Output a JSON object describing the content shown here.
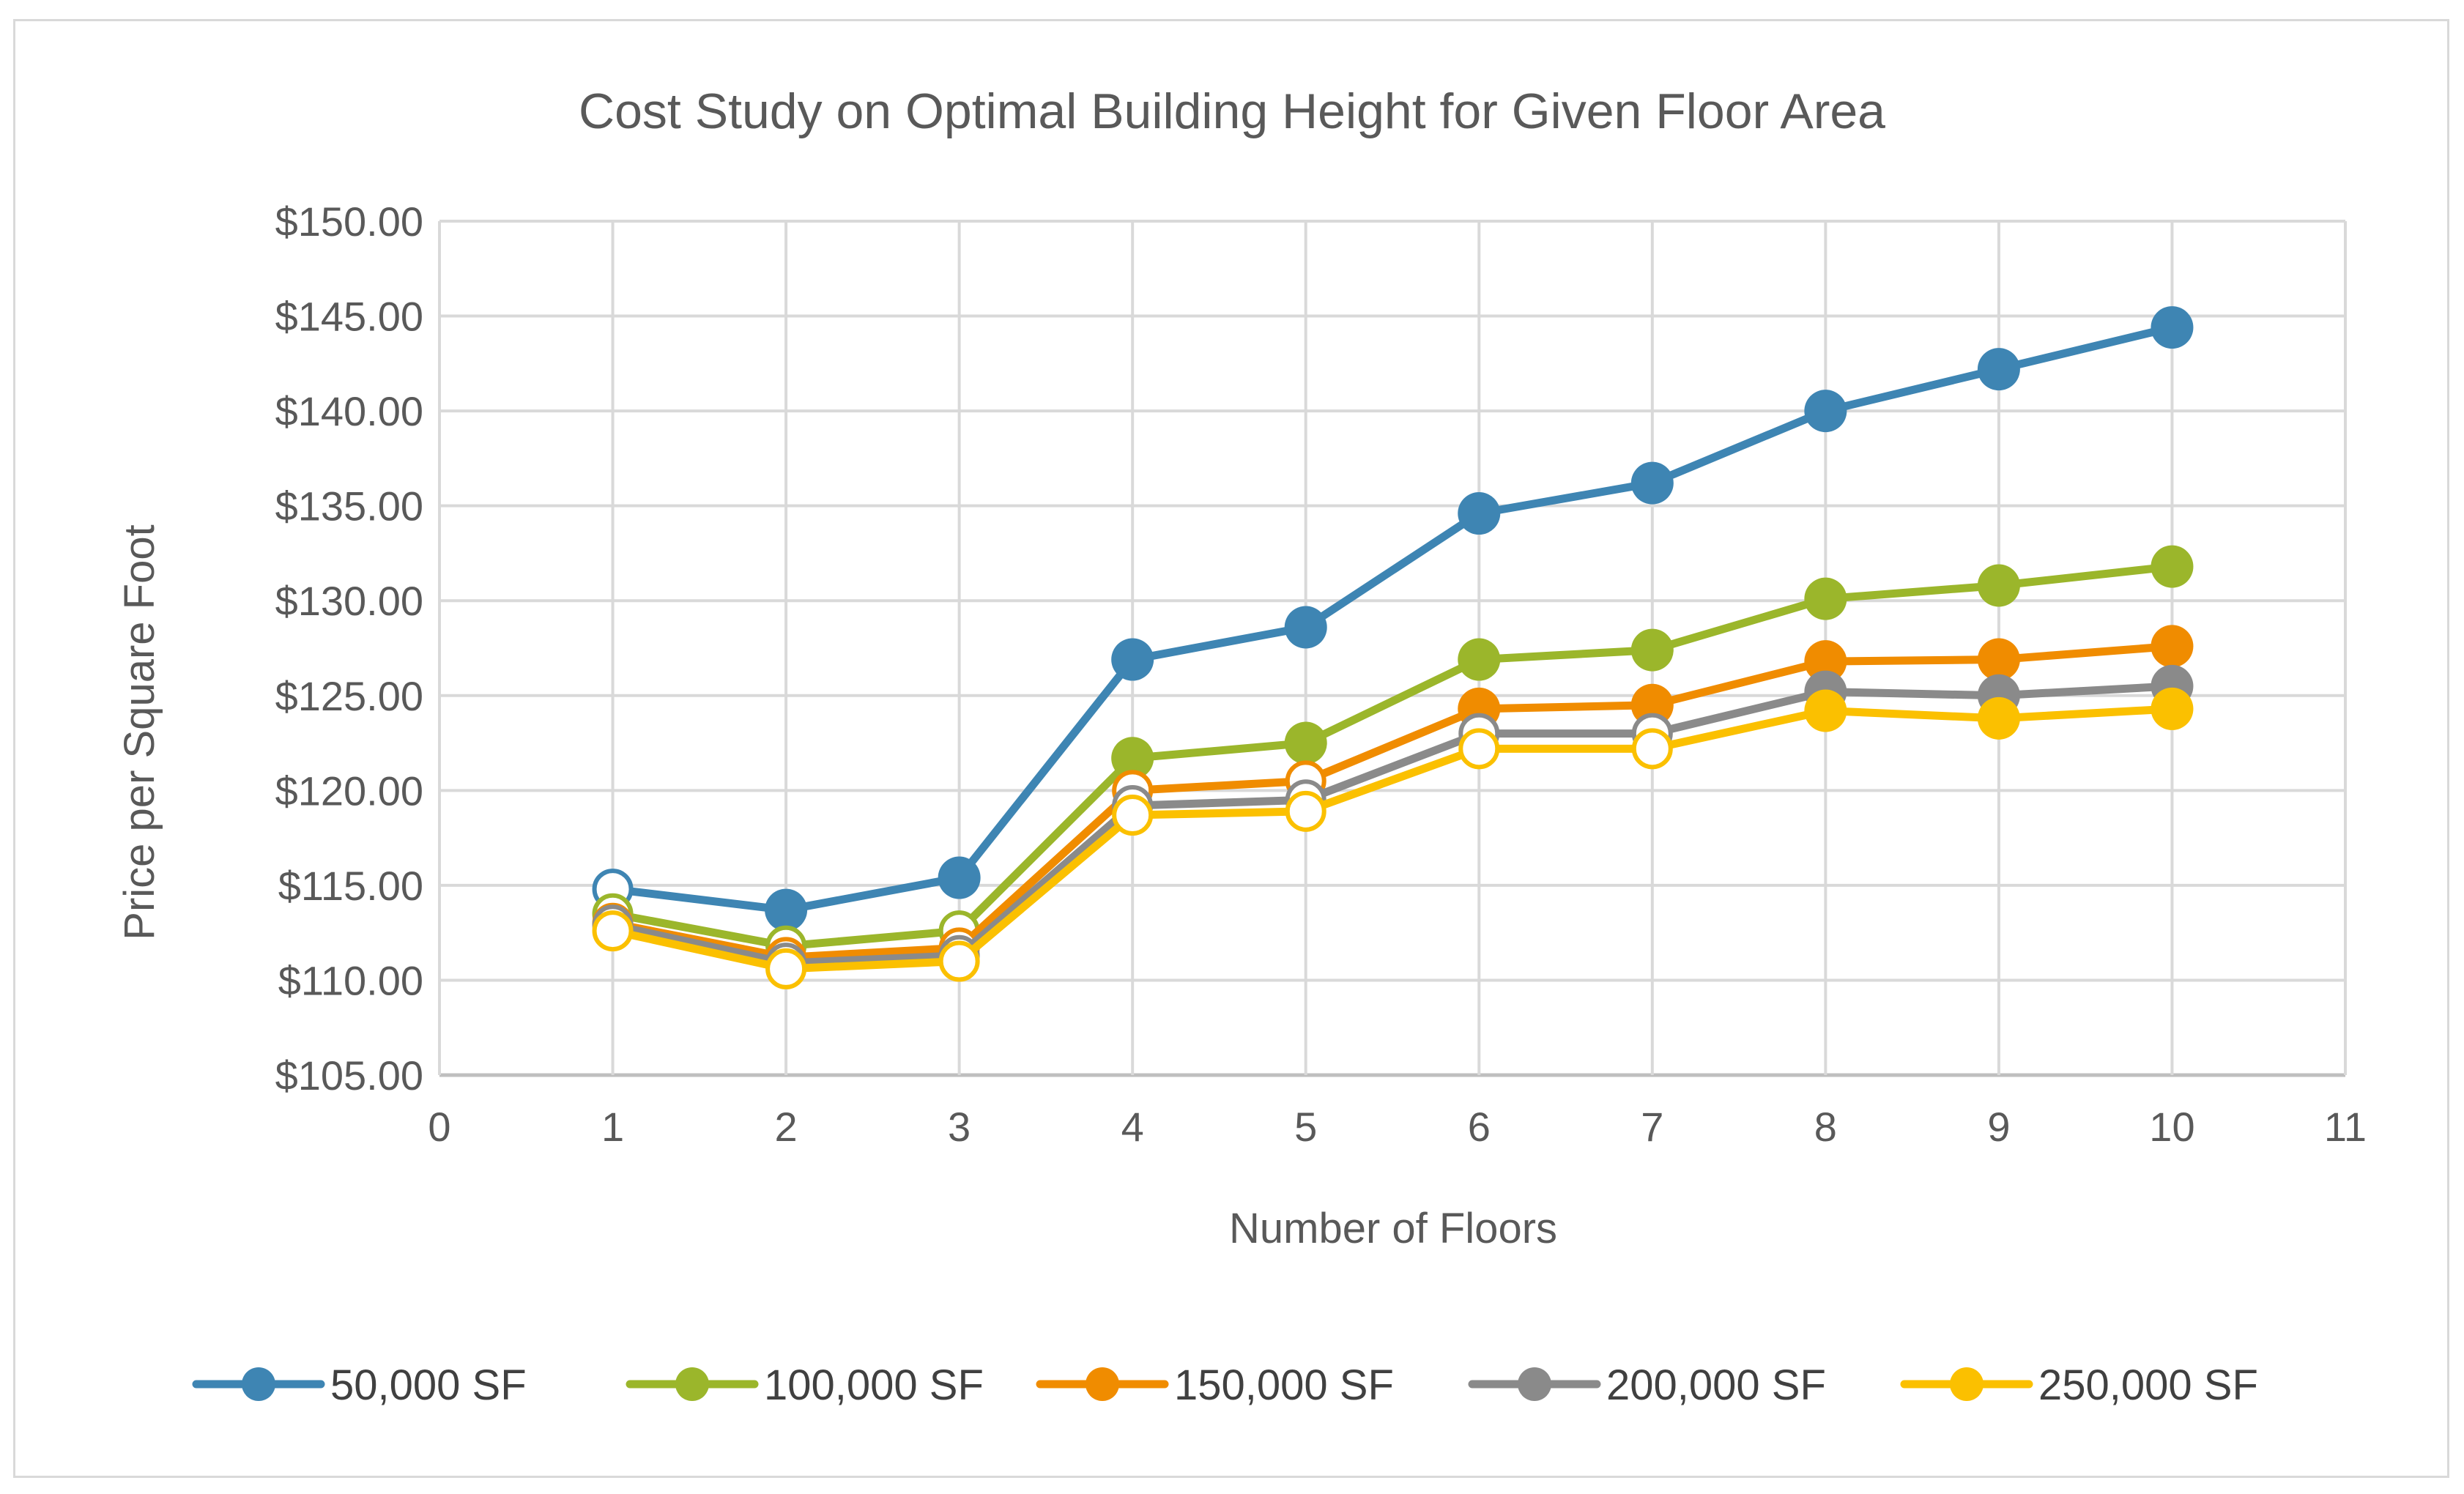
{
  "chart_data": {
    "type": "line",
    "title": "Cost Study on Optimal Building Height for Given Floor Area",
    "xlabel": "Number of Floors",
    "ylabel": "Price per Square Foot",
    "xlim": [
      0,
      11
    ],
    "ylim": [
      105,
      150
    ],
    "x_ticks": [
      0,
      1,
      2,
      3,
      4,
      5,
      6,
      7,
      8,
      9,
      10,
      11
    ],
    "y_ticks": [
      "$105.00",
      "$110.00",
      "$115.00",
      "$120.00",
      "$125.00",
      "$130.00",
      "$135.00",
      "$140.00",
      "$145.00",
      "$150.00"
    ],
    "y_tick_values": [
      105,
      110,
      115,
      120,
      125,
      130,
      135,
      140,
      145,
      150
    ],
    "grid": true,
    "legend_position": "bottom",
    "x": [
      1,
      2,
      3,
      4,
      5,
      6,
      7,
      8,
      9,
      10
    ],
    "series": [
      {
        "name": "50,000 SF",
        "color": "#3e85b3",
        "values": [
          114.8,
          113.7,
          115.4,
          126.9,
          128.6,
          134.6,
          136.2,
          140.0,
          142.2,
          144.4
        ],
        "hollow": [
          true,
          false,
          false,
          false,
          false,
          false,
          false,
          false,
          false,
          false
        ]
      },
      {
        "name": "100,000 SF",
        "color": "#9bb62b",
        "values": [
          113.5,
          111.8,
          112.6,
          121.7,
          122.5,
          126.9,
          127.4,
          130.1,
          130.8,
          131.8
        ],
        "hollow": [
          true,
          true,
          true,
          false,
          false,
          false,
          false,
          false,
          false,
          false
        ]
      },
      {
        "name": "150,000 SF",
        "color": "#f08c00",
        "values": [
          113.0,
          111.2,
          111.7,
          120.0,
          120.5,
          124.3,
          124.5,
          126.8,
          126.9,
          127.6
        ],
        "hollow": [
          true,
          true,
          true,
          true,
          true,
          false,
          false,
          false,
          false,
          false
        ]
      },
      {
        "name": "200,000 SF",
        "color": "#8a8a8a",
        "values": [
          112.9,
          110.9,
          111.3,
          119.2,
          119.5,
          123.0,
          123.0,
          125.2,
          125.0,
          125.5
        ],
        "hollow": [
          true,
          true,
          true,
          true,
          true,
          true,
          true,
          false,
          false,
          false
        ]
      },
      {
        "name": "250,000 SF",
        "color": "#fbc000",
        "values": [
          112.6,
          110.6,
          111.0,
          118.7,
          118.9,
          122.2,
          122.2,
          124.2,
          123.8,
          124.3
        ],
        "hollow": [
          true,
          true,
          true,
          true,
          true,
          true,
          true,
          false,
          false,
          false
        ]
      }
    ]
  }
}
